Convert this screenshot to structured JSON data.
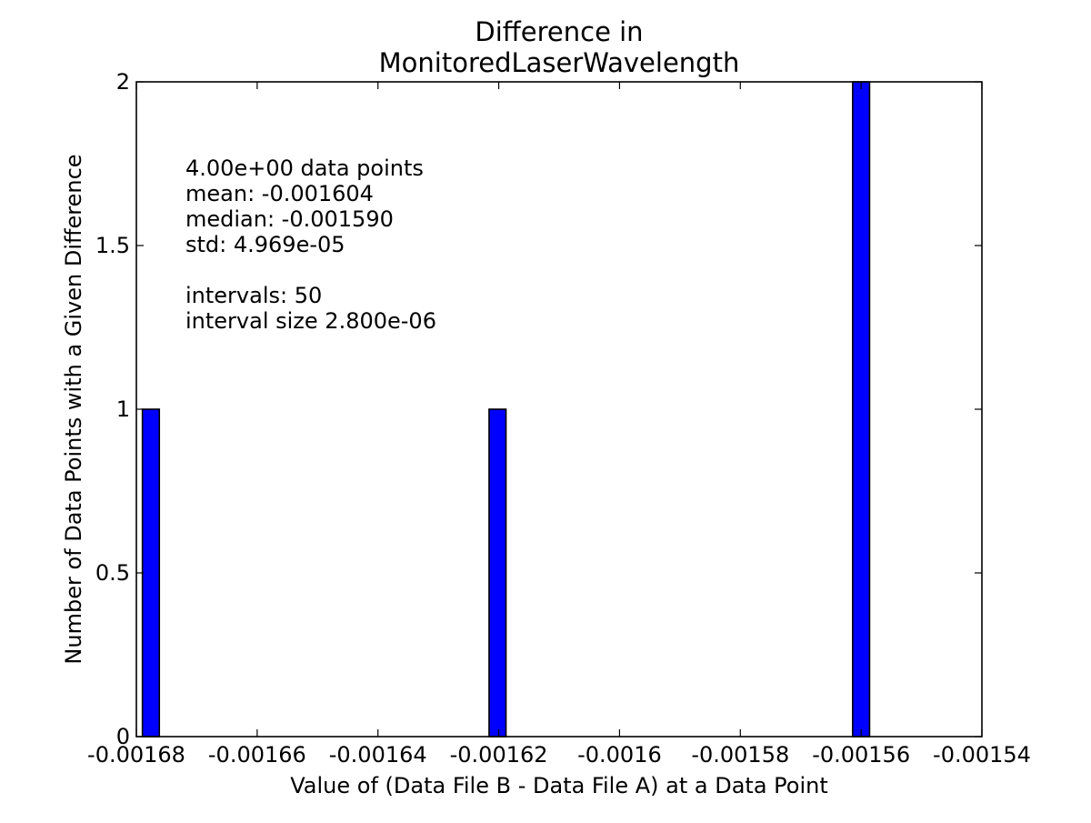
{
  "chart_data": {
    "type": "bar",
    "title_lines": [
      "Difference in",
      "MonitoredLaserWavelength"
    ],
    "xlabel": "Value of (Data File B - Data File A) at a Data Point",
    "ylabel": "Number of Data Points with a Given Difference",
    "xlim": [
      -0.00168,
      -0.00154
    ],
    "ylim": [
      0,
      2
    ],
    "xticks": [
      {
        "value": -0.00168,
        "label": "-0.00168"
      },
      {
        "value": -0.00166,
        "label": "-0.00166"
      },
      {
        "value": -0.00164,
        "label": "-0.00164"
      },
      {
        "value": -0.00162,
        "label": "-0.00162"
      },
      {
        "value": -0.0016,
        "label": "-0.0016"
      },
      {
        "value": -0.00158,
        "label": "-0.00158"
      },
      {
        "value": -0.00156,
        "label": "-0.00156"
      },
      {
        "value": -0.00154,
        "label": "-0.00154"
      }
    ],
    "yticks": [
      {
        "value": 0,
        "label": "0"
      },
      {
        "value": 0.5,
        "label": "0.5"
      },
      {
        "value": 1,
        "label": "1"
      },
      {
        "value": 1.5,
        "label": "1.5"
      },
      {
        "value": 2,
        "label": "2"
      }
    ],
    "bars": [
      {
        "x_start": -0.001679,
        "x_end": -0.0016762,
        "count": 1
      },
      {
        "x_start": -0.0016216,
        "x_end": -0.0016188,
        "count": 1
      },
      {
        "x_start": -0.0015614,
        "x_end": -0.0015586,
        "count": 2
      }
    ],
    "bar_color": "#0000ff",
    "grid": false,
    "annotation_lines": [
      "4.00e+00 data points",
      "mean: -0.001604",
      "median: -0.001590",
      "std: 4.969e-05",
      "",
      "intervals: 50",
      "interval size 2.800e-06"
    ]
  }
}
